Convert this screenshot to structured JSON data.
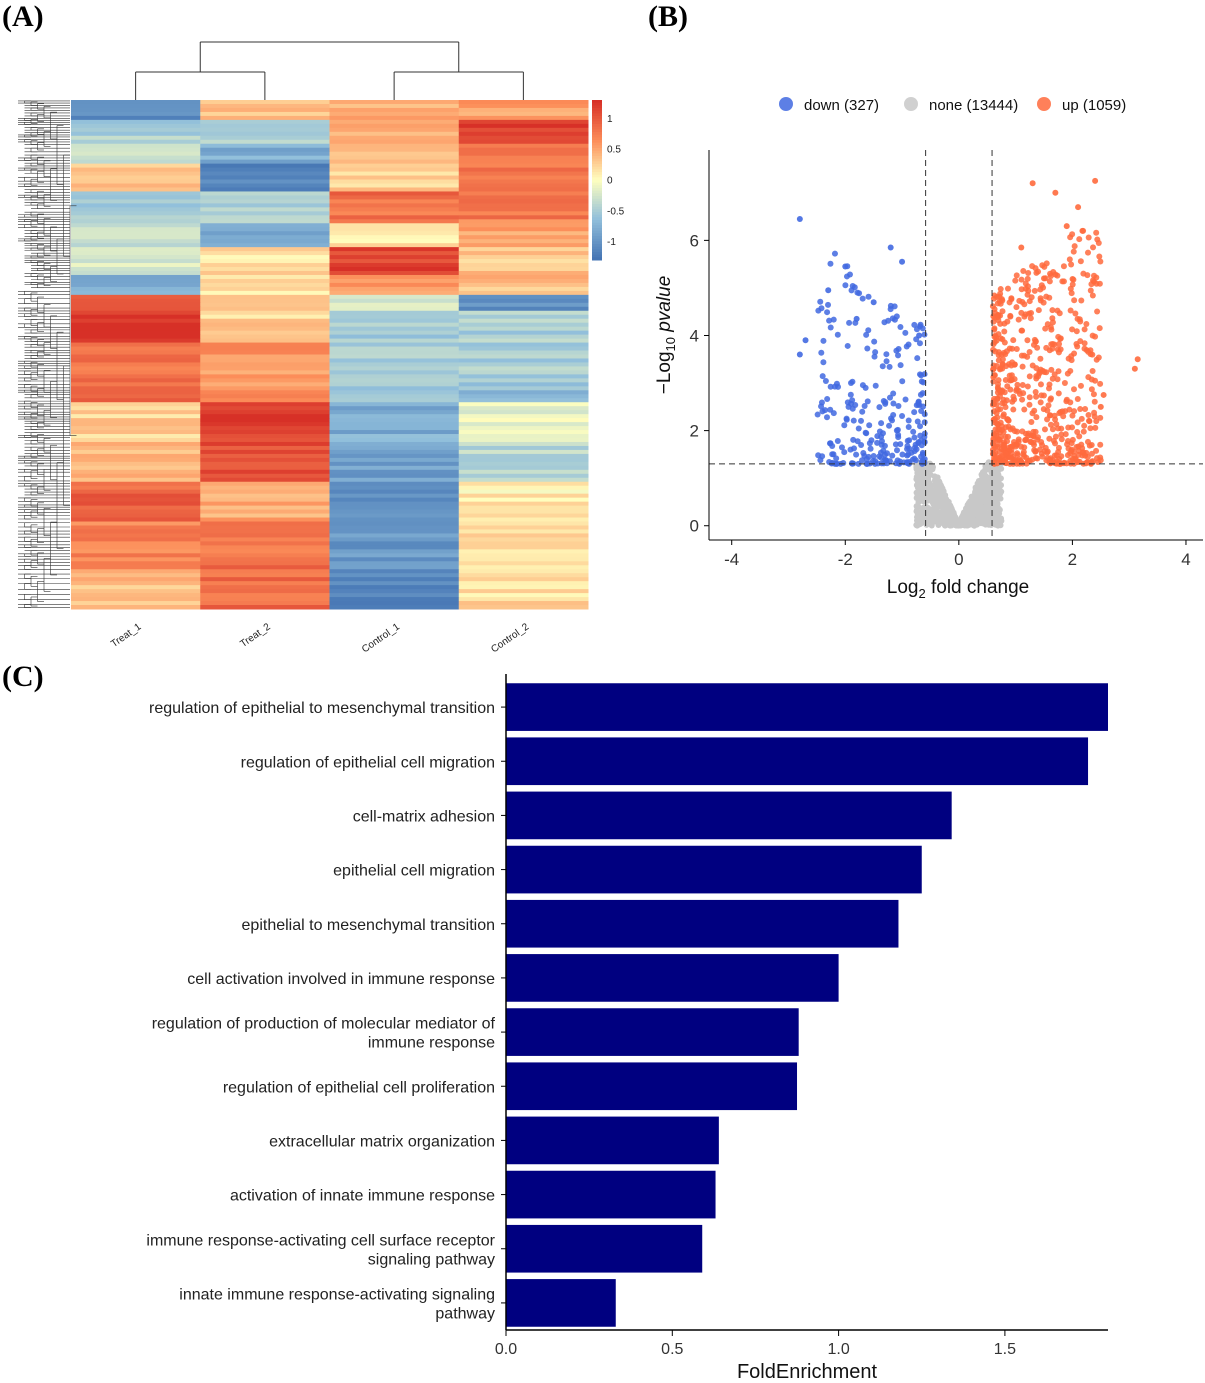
{
  "panels": {
    "a": "(A)",
    "b": "(B)",
    "c": "(C)"
  },
  "chart_data": [
    {
      "panel": "A",
      "type": "heatmap",
      "columns": [
        "Treat_1",
        "Treat_2",
        "Control_1",
        "Control_2"
      ],
      "colorbar_ticks": [
        1,
        0.5,
        0,
        -0.5,
        -1
      ],
      "colorbar_tick_labels": [
        "1",
        "0.5",
        "0",
        "-0.5",
        "-1"
      ],
      "colors": {
        "high": "#d73027",
        "mid": "#ffffbf",
        "low": "#4575b4"
      },
      "blocks": [
        {
          "rows": 5,
          "values": [
            -1.1,
            0.35,
            0.45,
            0.5
          ]
        },
        {
          "rows": 6,
          "values": [
            -0.5,
            -0.5,
            0.4,
            1.2
          ]
        },
        {
          "rows": 5,
          "values": [
            -0.3,
            -0.8,
            0.35,
            0.9
          ]
        },
        {
          "rows": 7,
          "values": [
            0.3,
            -1.2,
            0.3,
            0.8
          ]
        },
        {
          "rows": 8,
          "values": [
            -0.5,
            -0.5,
            0.85,
            0.75
          ]
        },
        {
          "rows": 6,
          "values": [
            -0.3,
            -0.8,
            0.1,
            0.5
          ]
        },
        {
          "rows": 7,
          "values": [
            -0.2,
            0.2,
            1.15,
            0.3
          ]
        },
        {
          "rows": 5,
          "values": [
            -0.8,
            0.2,
            0.6,
            0.35
          ]
        },
        {
          "rows": 4,
          "values": [
            1.0,
            0.4,
            -0.3,
            -1.1
          ]
        },
        {
          "rows": 8,
          "values": [
            1.3,
            0.25,
            -0.5,
            -0.5
          ]
        },
        {
          "rows": 10,
          "values": [
            0.85,
            0.6,
            -0.5,
            -0.5
          ]
        },
        {
          "rows": 5,
          "values": [
            0.85,
            0.6,
            -0.5,
            -0.7
          ]
        },
        {
          "rows": 10,
          "values": [
            0.25,
            1.2,
            -0.8,
            -0.1
          ]
        },
        {
          "rows": 10,
          "values": [
            0.45,
            1.05,
            -0.9,
            -0.4
          ]
        },
        {
          "rows": 10,
          "values": [
            0.95,
            0.5,
            -1.0,
            0.1
          ]
        },
        {
          "rows": 12,
          "values": [
            0.7,
            0.85,
            -1.0,
            0.15
          ]
        },
        {
          "rows": 10,
          "values": [
            0.4,
            0.9,
            -1.2,
            0.2
          ]
        }
      ]
    },
    {
      "panel": "B",
      "type": "scatter",
      "title": "",
      "xlabel": "Log2 fold change",
      "ylabel": "-Log10 pvalue",
      "xlim": [
        -4.4,
        4.3
      ],
      "ylim": [
        -0.3,
        7.9
      ],
      "xticks": [
        -4,
        -2,
        0,
        2,
        4
      ],
      "yticks": [
        0,
        2,
        4,
        6
      ],
      "thresholds": {
        "x": [
          -0.585,
          0.585
        ],
        "y": 1.3
      },
      "legend_position": "top",
      "series": [
        {
          "name": "down (327)",
          "color": "#4169e1",
          "count": 327,
          "x_range": [
            -2.8,
            -0.585
          ],
          "y_range": [
            1.3,
            6.4
          ]
        },
        {
          "name": "none (13444)",
          "color": "#c8c8c8",
          "count": 13444,
          "x_range": [
            -0.585,
            0.585
          ],
          "y_range": [
            0,
            1.3
          ]
        },
        {
          "name": "up (1059)",
          "color": "#ff6a3d",
          "count": 1059,
          "x_range": [
            0.585,
            3.1
          ],
          "y_range": [
            1.3,
            7.2
          ]
        }
      ],
      "highlight_points": [
        [
          -2.8,
          6.45
        ],
        [
          -2.7,
          3.9
        ],
        [
          -2.8,
          3.6
        ],
        [
          -2.0,
          5.45
        ],
        [
          -1.2,
          5.85
        ],
        [
          -1.0,
          5.55
        ],
        [
          -2.3,
          4.95
        ],
        [
          -1.5,
          4.7
        ],
        [
          -1.8,
          4.35
        ],
        [
          -0.7,
          4.0
        ],
        [
          2.4,
          7.25
        ],
        [
          1.3,
          7.2
        ],
        [
          1.7,
          7.0
        ],
        [
          2.1,
          6.7
        ],
        [
          1.9,
          6.3
        ],
        [
          1.1,
          5.85
        ],
        [
          1.5,
          5.2
        ],
        [
          3.15,
          3.5
        ],
        [
          3.1,
          3.3
        ],
        [
          2.55,
          2.75
        ],
        [
          2.5,
          2.5
        ],
        [
          2.3,
          2.2
        ]
      ]
    },
    {
      "panel": "C",
      "type": "bar",
      "orientation": "horizontal",
      "xlabel": "FoldEnrichment",
      "ylabel": "",
      "xlim": [
        0,
        1.81
      ],
      "xticks": [
        0.0,
        0.5,
        1.0,
        1.5
      ],
      "xtick_labels": [
        "0.0",
        "0.5",
        "1.0",
        "1.5"
      ],
      "bar_color": "#000080",
      "categories": [
        [
          "regulation of epithelial to mesenchymal transition"
        ],
        [
          "regulation of epithelial cell migration"
        ],
        [
          "cell-matrix adhesion"
        ],
        [
          "epithelial cell migration"
        ],
        [
          "epithelial to mesenchymal transition"
        ],
        [
          "cell activation involved in immune response"
        ],
        [
          "regulation of production of molecular mediator of",
          "immune response"
        ],
        [
          "regulation of epithelial cell proliferation"
        ],
        [
          "extracellular matrix organization"
        ],
        [
          "activation of innate immune response"
        ],
        [
          "immune response-activating cell surface receptor",
          "signaling pathway"
        ],
        [
          "innate immune response-activating signaling",
          "pathway"
        ]
      ],
      "values": [
        1.81,
        1.75,
        1.34,
        1.25,
        1.18,
        1.0,
        0.88,
        0.875,
        0.64,
        0.63,
        0.59,
        0.33
      ]
    }
  ]
}
